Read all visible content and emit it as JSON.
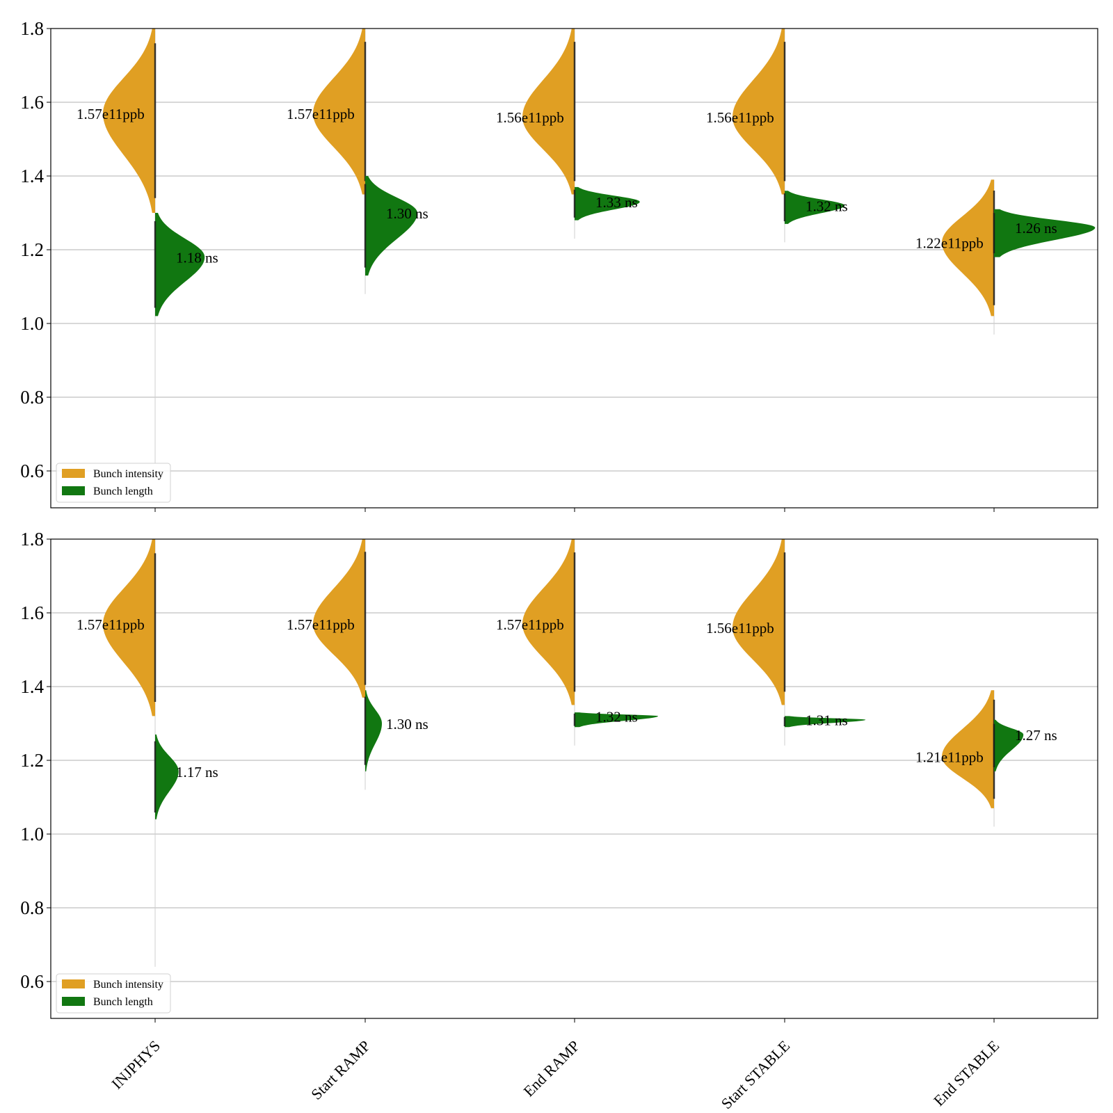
{
  "chart_data": [
    {
      "type": "violin",
      "categories": [
        "INJPHYS",
        "Start RAMP",
        "End RAMP",
        "Start STABLE",
        "End STABLE"
      ],
      "ylim": [
        0.5,
        1.8
      ],
      "yticks": [
        "0.6",
        "0.8",
        "1.0",
        "1.2",
        "1.4",
        "1.6",
        "1.8"
      ],
      "grid": "horizontal",
      "legend": {
        "placement": "lower-left",
        "entries": [
          "Bunch intensity",
          "Bunch length"
        ]
      },
      "colors": {
        "intensity": "#e09f23",
        "length": "#117711"
      },
      "series": [
        {
          "name": "Bunch intensity",
          "side": "left",
          "medians": [
            1.57,
            1.57,
            1.56,
            1.56,
            1.22
          ],
          "labels": [
            "1.57e11ppb",
            "1.57e11ppb",
            "1.56e11ppb",
            "1.56e11ppb",
            "1.22e11ppb"
          ],
          "range": [
            [
              1.3,
              1.8
            ],
            [
              1.35,
              1.8
            ],
            [
              1.35,
              1.8
            ],
            [
              1.35,
              1.8
            ],
            [
              1.02,
              1.39
            ]
          ]
        },
        {
          "name": "Bunch length",
          "side": "right",
          "medians": [
            1.18,
            1.3,
            1.33,
            1.32,
            1.26
          ],
          "labels": [
            "1.18 ns",
            "1.30 ns",
            "1.33 ns",
            "1.32 ns",
            "1.26 ns"
          ],
          "range": [
            [
              1.02,
              1.3
            ],
            [
              1.13,
              1.4
            ],
            [
              1.28,
              1.37
            ],
            [
              1.27,
              1.36
            ],
            [
              1.18,
              1.31
            ]
          ]
        }
      ]
    },
    {
      "type": "violin",
      "categories": [
        "INJPHYS",
        "Start RAMP",
        "End RAMP",
        "Start STABLE",
        "End STABLE"
      ],
      "ylim": [
        0.5,
        1.8
      ],
      "yticks": [
        "0.6",
        "0.8",
        "1.0",
        "1.2",
        "1.4",
        "1.6",
        "1.8"
      ],
      "grid": "horizontal",
      "legend": {
        "placement": "lower-left",
        "entries": [
          "Bunch intensity",
          "Bunch length"
        ]
      },
      "colors": {
        "intensity": "#e09f23",
        "length": "#117711"
      },
      "series": [
        {
          "name": "Bunch intensity",
          "side": "left",
          "medians": [
            1.57,
            1.57,
            1.57,
            1.56,
            1.21
          ],
          "labels": [
            "1.57e11ppb",
            "1.57e11ppb",
            "1.57e11ppb",
            "1.56e11ppb",
            "1.21e11ppb"
          ],
          "range": [
            [
              1.32,
              1.8
            ],
            [
              1.37,
              1.8
            ],
            [
              1.35,
              1.8
            ],
            [
              1.35,
              1.8
            ],
            [
              1.07,
              1.39
            ]
          ]
        },
        {
          "name": "Bunch length",
          "side": "right",
          "medians": [
            1.17,
            1.3,
            1.32,
            1.31,
            1.27
          ],
          "labels": [
            "1.17 ns",
            "1.30 ns",
            "1.32 ns",
            "1.31 ns",
            "1.27 ns"
          ],
          "range": [
            [
              1.04,
              1.27
            ],
            [
              1.17,
              1.39
            ],
            [
              1.29,
              1.33
            ],
            [
              1.29,
              1.32
            ],
            [
              1.17,
              1.31
            ]
          ]
        }
      ]
    }
  ]
}
